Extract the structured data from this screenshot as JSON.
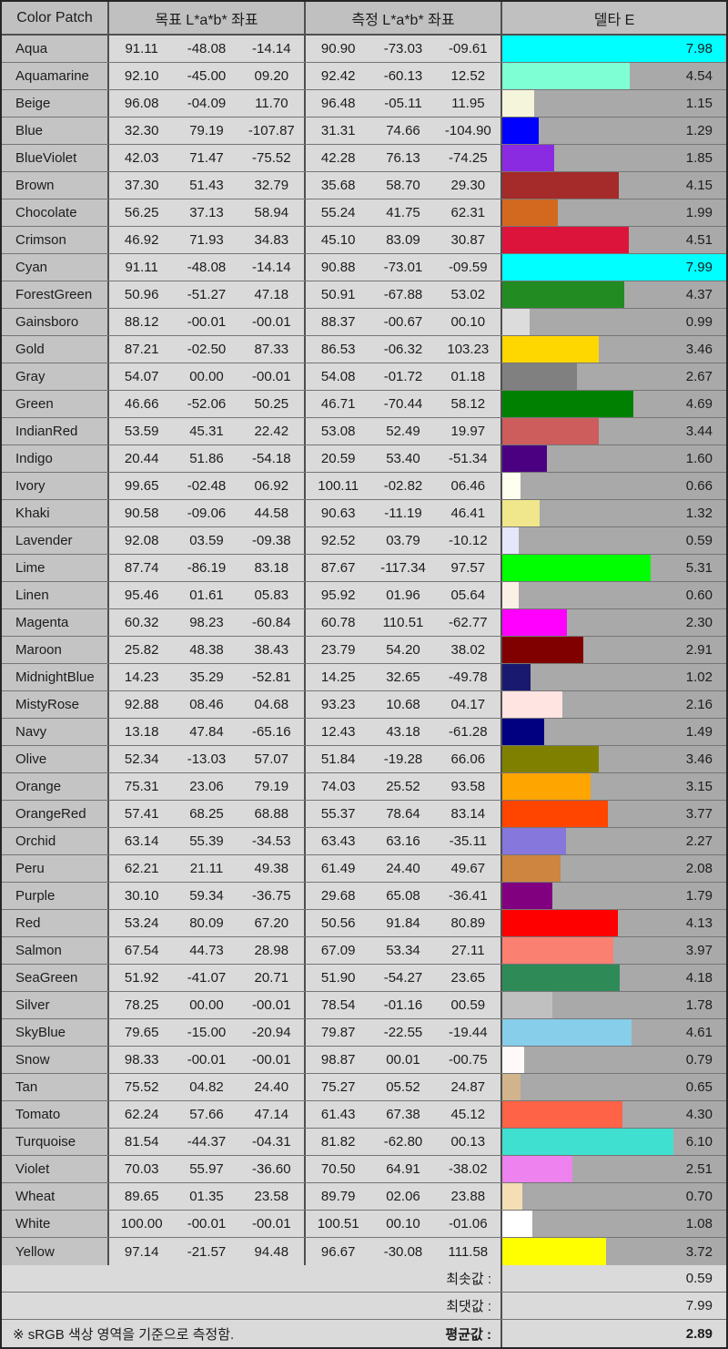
{
  "table": {
    "headers": {
      "patch": "Color Patch",
      "target": "목표 L*a*b* 좌표",
      "measured": "측정 L*a*b* 좌표",
      "delta": "델타 E"
    },
    "delta_axis": {
      "min": 0,
      "max": 8
    },
    "rows": [
      {
        "name": "Aqua",
        "bar_color": "#00FFFF",
        "target": [
          "91.11",
          "-48.08",
          "-14.14"
        ],
        "measured": [
          "90.90",
          "-73.03",
          "-09.61"
        ],
        "delta": "7.98"
      },
      {
        "name": "Aquamarine",
        "bar_color": "#7FFFD4",
        "target": [
          "92.10",
          "-45.00",
          "09.20"
        ],
        "measured": [
          "92.42",
          "-60.13",
          "12.52"
        ],
        "delta": "4.54"
      },
      {
        "name": "Beige",
        "bar_color": "#F5F5DC",
        "target": [
          "96.08",
          "-04.09",
          "11.70"
        ],
        "measured": [
          "96.48",
          "-05.11",
          "11.95"
        ],
        "delta": "1.15"
      },
      {
        "name": "Blue",
        "bar_color": "#0000FF",
        "target": [
          "32.30",
          "79.19",
          "-107.87"
        ],
        "measured": [
          "31.31",
          "74.66",
          "-104.90"
        ],
        "delta": "1.29"
      },
      {
        "name": "BlueViolet",
        "bar_color": "#8A2BE2",
        "target": [
          "42.03",
          "71.47",
          "-75.52"
        ],
        "measured": [
          "42.28",
          "76.13",
          "-74.25"
        ],
        "delta": "1.85"
      },
      {
        "name": "Brown",
        "bar_color": "#A52A2A",
        "target": [
          "37.30",
          "51.43",
          "32.79"
        ],
        "measured": [
          "35.68",
          "58.70",
          "29.30"
        ],
        "delta": "4.15"
      },
      {
        "name": "Chocolate",
        "bar_color": "#D2691E",
        "target": [
          "56.25",
          "37.13",
          "58.94"
        ],
        "measured": [
          "55.24",
          "41.75",
          "62.31"
        ],
        "delta": "1.99"
      },
      {
        "name": "Crimson",
        "bar_color": "#DC143C",
        "target": [
          "46.92",
          "71.93",
          "34.83"
        ],
        "measured": [
          "45.10",
          "83.09",
          "30.87"
        ],
        "delta": "4.51"
      },
      {
        "name": "Cyan",
        "bar_color": "#00FFFF",
        "target": [
          "91.11",
          "-48.08",
          "-14.14"
        ],
        "measured": [
          "90.88",
          "-73.01",
          "-09.59"
        ],
        "delta": "7.99"
      },
      {
        "name": "ForestGreen",
        "bar_color": "#228B22",
        "target": [
          "50.96",
          "-51.27",
          "47.18"
        ],
        "measured": [
          "50.91",
          "-67.88",
          "53.02"
        ],
        "delta": "4.37"
      },
      {
        "name": "Gainsboro",
        "bar_color": "#DCDCDC",
        "target": [
          "88.12",
          "-00.01",
          "-00.01"
        ],
        "measured": [
          "88.37",
          "-00.67",
          "00.10"
        ],
        "delta": "0.99"
      },
      {
        "name": "Gold",
        "bar_color": "#FFD700",
        "target": [
          "87.21",
          "-02.50",
          "87.33"
        ],
        "measured": [
          "86.53",
          "-06.32",
          "103.23"
        ],
        "delta": "3.46"
      },
      {
        "name": "Gray",
        "bar_color": "#808080",
        "target": [
          "54.07",
          "00.00",
          "-00.01"
        ],
        "measured": [
          "54.08",
          "-01.72",
          "01.18"
        ],
        "delta": "2.67"
      },
      {
        "name": "Green",
        "bar_color": "#008000",
        "target": [
          "46.66",
          "-52.06",
          "50.25"
        ],
        "measured": [
          "46.71",
          "-70.44",
          "58.12"
        ],
        "delta": "4.69"
      },
      {
        "name": "IndianRed",
        "bar_color": "#CD5C5C",
        "target": [
          "53.59",
          "45.31",
          "22.42"
        ],
        "measured": [
          "53.08",
          "52.49",
          "19.97"
        ],
        "delta": "3.44"
      },
      {
        "name": "Indigo",
        "bar_color": "#4B0082",
        "target": [
          "20.44",
          "51.86",
          "-54.18"
        ],
        "measured": [
          "20.59",
          "53.40",
          "-51.34"
        ],
        "delta": "1.60"
      },
      {
        "name": "Ivory",
        "bar_color": "#FFFFF0",
        "target": [
          "99.65",
          "-02.48",
          "06.92"
        ],
        "measured": [
          "100.11",
          "-02.82",
          "06.46"
        ],
        "delta": "0.66"
      },
      {
        "name": "Khaki",
        "bar_color": "#F0E68C",
        "target": [
          "90.58",
          "-09.06",
          "44.58"
        ],
        "measured": [
          "90.63",
          "-11.19",
          "46.41"
        ],
        "delta": "1.32"
      },
      {
        "name": "Lavender",
        "bar_color": "#E6E6FA",
        "target": [
          "92.08",
          "03.59",
          "-09.38"
        ],
        "measured": [
          "92.52",
          "03.79",
          "-10.12"
        ],
        "delta": "0.59"
      },
      {
        "name": "Lime",
        "bar_color": "#00FF00",
        "target": [
          "87.74",
          "-86.19",
          "83.18"
        ],
        "measured": [
          "87.67",
          "-117.34",
          "97.57"
        ],
        "delta": "5.31"
      },
      {
        "name": "Linen",
        "bar_color": "#FAF0E6",
        "target": [
          "95.46",
          "01.61",
          "05.83"
        ],
        "measured": [
          "95.92",
          "01.96",
          "05.64"
        ],
        "delta": "0.60"
      },
      {
        "name": "Magenta",
        "bar_color": "#FF00FF",
        "target": [
          "60.32",
          "98.23",
          "-60.84"
        ],
        "measured": [
          "60.78",
          "110.51",
          "-62.77"
        ],
        "delta": "2.30"
      },
      {
        "name": "Maroon",
        "bar_color": "#800000",
        "target": [
          "25.82",
          "48.38",
          "38.43"
        ],
        "measured": [
          "23.79",
          "54.20",
          "38.02"
        ],
        "delta": "2.91"
      },
      {
        "name": "MidnightBlue",
        "bar_color": "#191970",
        "target": [
          "14.23",
          "35.29",
          "-52.81"
        ],
        "measured": [
          "14.25",
          "32.65",
          "-49.78"
        ],
        "delta": "1.02"
      },
      {
        "name": "MistyRose",
        "bar_color": "#FFE4E1",
        "target": [
          "92.88",
          "08.46",
          "04.68"
        ],
        "measured": [
          "93.23",
          "10.68",
          "04.17"
        ],
        "delta": "2.16"
      },
      {
        "name": "Navy",
        "bar_color": "#000080",
        "target": [
          "13.18",
          "47.84",
          "-65.16"
        ],
        "measured": [
          "12.43",
          "43.18",
          "-61.28"
        ],
        "delta": "1.49"
      },
      {
        "name": "Olive",
        "bar_color": "#808000",
        "target": [
          "52.34",
          "-13.03",
          "57.07"
        ],
        "measured": [
          "51.84",
          "-19.28",
          "66.06"
        ],
        "delta": "3.46"
      },
      {
        "name": "Orange",
        "bar_color": "#FFA500",
        "target": [
          "75.31",
          "23.06",
          "79.19"
        ],
        "measured": [
          "74.03",
          "25.52",
          "93.58"
        ],
        "delta": "3.15"
      },
      {
        "name": "OrangeRed",
        "bar_color": "#FF4500",
        "target": [
          "57.41",
          "68.25",
          "68.88"
        ],
        "measured": [
          "55.37",
          "78.64",
          "83.14"
        ],
        "delta": "3.77"
      },
      {
        "name": "Orchid",
        "bar_color": "#8577DB",
        "target": [
          "63.14",
          "55.39",
          "-34.53"
        ],
        "measured": [
          "63.43",
          "63.16",
          "-35.11"
        ],
        "delta": "2.27"
      },
      {
        "name": "Peru",
        "bar_color": "#CD853F",
        "target": [
          "62.21",
          "21.11",
          "49.38"
        ],
        "measured": [
          "61.49",
          "24.40",
          "49.67"
        ],
        "delta": "2.08"
      },
      {
        "name": "Purple",
        "bar_color": "#800080",
        "target": [
          "30.10",
          "59.34",
          "-36.75"
        ],
        "measured": [
          "29.68",
          "65.08",
          "-36.41"
        ],
        "delta": "1.79"
      },
      {
        "name": "Red",
        "bar_color": "#FF0000",
        "target": [
          "53.24",
          "80.09",
          "67.20"
        ],
        "measured": [
          "50.56",
          "91.84",
          "80.89"
        ],
        "delta": "4.13"
      },
      {
        "name": "Salmon",
        "bar_color": "#FA8072",
        "target": [
          "67.54",
          "44.73",
          "28.98"
        ],
        "measured": [
          "67.09",
          "53.34",
          "27.11"
        ],
        "delta": "3.97"
      },
      {
        "name": "SeaGreen",
        "bar_color": "#2E8B57",
        "target": [
          "51.92",
          "-41.07",
          "20.71"
        ],
        "measured": [
          "51.90",
          "-54.27",
          "23.65"
        ],
        "delta": "4.18"
      },
      {
        "name": "Silver",
        "bar_color": "#C0C0C0",
        "target": [
          "78.25",
          "00.00",
          "-00.01"
        ],
        "measured": [
          "78.54",
          "-01.16",
          "00.59"
        ],
        "delta": "1.78"
      },
      {
        "name": "SkyBlue",
        "bar_color": "#87CEEB",
        "target": [
          "79.65",
          "-15.00",
          "-20.94"
        ],
        "measured": [
          "79.87",
          "-22.55",
          "-19.44"
        ],
        "delta": "4.61"
      },
      {
        "name": "Snow",
        "bar_color": "#FFFAFA",
        "target": [
          "98.33",
          "-00.01",
          "-00.01"
        ],
        "measured": [
          "98.87",
          "00.01",
          "-00.75"
        ],
        "delta": "0.79"
      },
      {
        "name": "Tan",
        "bar_color": "#D2B48C",
        "target": [
          "75.52",
          "04.82",
          "24.40"
        ],
        "measured": [
          "75.27",
          "05.52",
          "24.87"
        ],
        "delta": "0.65"
      },
      {
        "name": "Tomato",
        "bar_color": "#FF6347",
        "target": [
          "62.24",
          "57.66",
          "47.14"
        ],
        "measured": [
          "61.43",
          "67.38",
          "45.12"
        ],
        "delta": "4.30"
      },
      {
        "name": "Turquoise",
        "bar_color": "#40E0D0",
        "target": [
          "81.54",
          "-44.37",
          "-04.31"
        ],
        "measured": [
          "81.82",
          "-62.80",
          "00.13"
        ],
        "delta": "6.10"
      },
      {
        "name": "Violet",
        "bar_color": "#EE82EE",
        "target": [
          "70.03",
          "55.97",
          "-36.60"
        ],
        "measured": [
          "70.50",
          "64.91",
          "-38.02"
        ],
        "delta": "2.51"
      },
      {
        "name": "Wheat",
        "bar_color": "#F5DEB3",
        "target": [
          "89.65",
          "01.35",
          "23.58"
        ],
        "measured": [
          "89.79",
          "02.06",
          "23.88"
        ],
        "delta": "0.70"
      },
      {
        "name": "White",
        "bar_color": "#FFFFFF",
        "target": [
          "100.00",
          "-00.01",
          "-00.01"
        ],
        "measured": [
          "100.51",
          "00.10",
          "-01.06"
        ],
        "delta": "1.08"
      },
      {
        "name": "Yellow",
        "bar_color": "#FFFF00",
        "target": [
          "97.14",
          "-21.57",
          "94.48"
        ],
        "measured": [
          "96.67",
          "-30.08",
          "111.58"
        ],
        "delta": "3.72"
      }
    ]
  },
  "summary": {
    "min_label": "최솟값 :",
    "min_value": "0.59",
    "max_label": "최댓값 :",
    "max_value": "7.99",
    "avg_label": "평균값 :",
    "avg_value": "2.89",
    "note": "※ sRGB 색상 영역을 기준으로 측정함."
  },
  "colors": {
    "header_bg": "#c0c0c0",
    "label_bg": "#c4c4c4",
    "cell_bg": "#dadada",
    "delta_track_bg": "#a9a9a9",
    "outer_border": "#262626",
    "column_border": "#4f4f4f",
    "row_line": "#757575",
    "text": "#1c1c1c"
  },
  "chart_data": {
    "type": "bar",
    "orientation": "horizontal",
    "title": "델타 E",
    "categories": [
      "Aqua",
      "Aquamarine",
      "Beige",
      "Blue",
      "BlueViolet",
      "Brown",
      "Chocolate",
      "Crimson",
      "Cyan",
      "ForestGreen",
      "Gainsboro",
      "Gold",
      "Gray",
      "Green",
      "IndianRed",
      "Indigo",
      "Ivory",
      "Khaki",
      "Lavender",
      "Lime",
      "Linen",
      "Magenta",
      "Maroon",
      "MidnightBlue",
      "MistyRose",
      "Navy",
      "Olive",
      "Orange",
      "OrangeRed",
      "Orchid",
      "Peru",
      "Purple",
      "Red",
      "Salmon",
      "SeaGreen",
      "Silver",
      "SkyBlue",
      "Snow",
      "Tan",
      "Tomato",
      "Turquoise",
      "Violet",
      "Wheat",
      "White",
      "Yellow"
    ],
    "values": [
      7.98,
      4.54,
      1.15,
      1.29,
      1.85,
      4.15,
      1.99,
      4.51,
      7.99,
      4.37,
      0.99,
      3.46,
      2.67,
      4.69,
      3.44,
      1.6,
      0.66,
      1.32,
      0.59,
      5.31,
      0.6,
      2.3,
      2.91,
      1.02,
      2.16,
      1.49,
      3.46,
      3.15,
      3.77,
      2.27,
      2.08,
      1.79,
      4.13,
      3.97,
      4.18,
      1.78,
      4.61,
      0.79,
      0.65,
      4.3,
      6.1,
      2.51,
      0.7,
      1.08,
      3.72
    ],
    "xlim": [
      0,
      8
    ],
    "bar_colors": [
      "#00FFFF",
      "#7FFFD4",
      "#F5F5DC",
      "#0000FF",
      "#8A2BE2",
      "#A52A2A",
      "#D2691E",
      "#DC143C",
      "#00FFFF",
      "#228B22",
      "#DCDCDC",
      "#FFD700",
      "#808080",
      "#008000",
      "#CD5C5C",
      "#4B0082",
      "#FFFFF0",
      "#F0E68C",
      "#E6E6FA",
      "#00FF00",
      "#FAF0E6",
      "#FF00FF",
      "#800000",
      "#191970",
      "#FFE4E1",
      "#000080",
      "#808000",
      "#FFA500",
      "#FF4500",
      "#8577DB",
      "#CD853F",
      "#800080",
      "#FF0000",
      "#FA8072",
      "#2E8B57",
      "#C0C0C0",
      "#87CEEB",
      "#FFFAFA",
      "#D2B48C",
      "#FF6347",
      "#40E0D0",
      "#EE82EE",
      "#F5DEB3",
      "#FFFFFF",
      "#FFFF00"
    ],
    "grid": false,
    "legend": false,
    "summary_stats": {
      "min": 0.59,
      "max": 7.99,
      "mean": 2.89
    }
  }
}
